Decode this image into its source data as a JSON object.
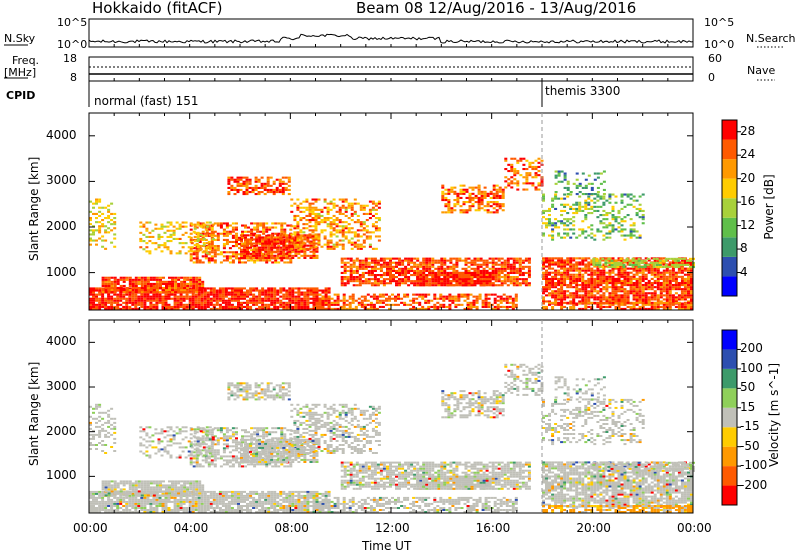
{
  "header": {
    "station": "Hokkaido (fitACF)",
    "beam": "Beam 08",
    "date_range": "12/Aug/2016 - 13/Aug/2016"
  },
  "strip_labels": {
    "nsky": "N.Sky",
    "nsky_top": "10^5",
    "nsky_bottom": "10^0",
    "nsearch": "N.Search",
    "nsearch_top": "10^5",
    "nsearch_bottom": "10^0",
    "freq_line1": "Freq.",
    "freq_line2": "[MHz]",
    "freq_top": "18",
    "freq_bottom": "8",
    "nave": "Nave",
    "nave_top": "60",
    "nave_bottom": "0",
    "cpid": "CPID",
    "mode1": "normal (fast) 151",
    "mode2": "themis 3300"
  },
  "colors": {
    "power": [
      "#0000ff",
      "#2d4fb0",
      "#3d9a6a",
      "#5fbf4a",
      "#a8d13a",
      "#ffcc00",
      "#ff9900",
      "#ff5a00",
      "#ff0000"
    ],
    "velocity": [
      "#ff0000",
      "#ff5a00",
      "#ff9900",
      "#ffcc00",
      "#c0c0b8",
      "#8fcf5a",
      "#3d9a6a",
      "#2d4fb0",
      "#0000ff"
    ]
  },
  "chart_data": [
    {
      "type": "heatmap",
      "name_hint": "power",
      "ylabel": "Slant Range [km]",
      "yticks": [
        "1000",
        "2000",
        "3000",
        "4000"
      ],
      "ylim": [
        180,
        4500
      ],
      "xlim": [
        0,
        24
      ],
      "colorbar_label": "Power [dB]",
      "colorbar_ticks": [
        "4",
        "8",
        "12",
        "16",
        "20",
        "24",
        "28"
      ],
      "colorbar_range": [
        0,
        30
      ]
    },
    {
      "type": "heatmap",
      "name_hint": "velocity",
      "ylabel": "Slant Range [km]",
      "yticks": [
        "1000",
        "2000",
        "3000",
        "4000"
      ],
      "ylim": [
        180,
        4500
      ],
      "xlim": [
        0,
        24
      ],
      "xlabel": "Time UT",
      "xticks": [
        "00:00",
        "04:00",
        "08:00",
        "12:00",
        "16:00",
        "20:00",
        "00:00"
      ],
      "colorbar_label": "Velocity [m s^-1]",
      "colorbar_ticks": [
        "200",
        "100",
        "50",
        "15",
        "-15",
        "-50",
        "-100",
        "-200"
      ]
    }
  ],
  "mode_change_time": 18.0
}
